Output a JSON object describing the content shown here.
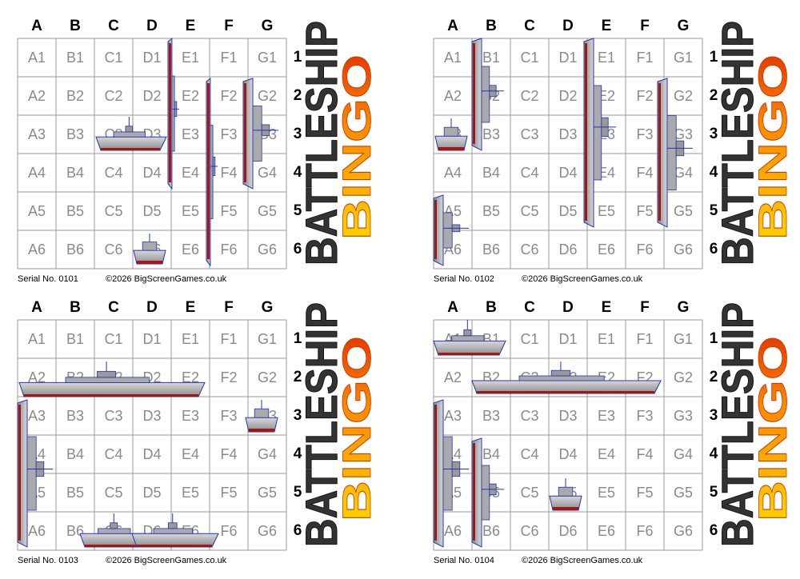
{
  "grid": {
    "columns": [
      "A",
      "B",
      "C",
      "D",
      "E",
      "F",
      "G"
    ],
    "rows": [
      "1",
      "2",
      "3",
      "4",
      "5",
      "6"
    ],
    "cells": [
      [
        "A1",
        "B1",
        "C1",
        "D1",
        "E1",
        "F1",
        "G1"
      ],
      [
        "A2",
        "B2",
        "C2",
        "D2",
        "E2",
        "F2",
        "G2"
      ],
      [
        "A3",
        "B3",
        "C3",
        "D3",
        "E3",
        "F3",
        "G3"
      ],
      [
        "A4",
        "B4",
        "C4",
        "D4",
        "E4",
        "F4",
        "G4"
      ],
      [
        "A5",
        "B5",
        "C5",
        "D5",
        "E5",
        "F5",
        "G5"
      ],
      [
        "A6",
        "B6",
        "C6",
        "D6",
        "E6",
        "F6",
        "G6"
      ]
    ]
  },
  "logo": {
    "line1": "BATTLESHIP",
    "line2": "BINGO"
  },
  "cards": [
    {
      "serial": "Serial No. 0101",
      "copyright": "©2026 BigScreenGames.co.uk"
    },
    {
      "serial": "Serial No. 0102",
      "copyright": "©2026 BigScreenGames.co.uk"
    },
    {
      "serial": "Serial No. 0103",
      "copyright": "©2026 BigScreenGames.co.uk"
    },
    {
      "serial": "Serial No. 0104",
      "copyright": "©2026 BigScreenGames.co.uk"
    }
  ]
}
